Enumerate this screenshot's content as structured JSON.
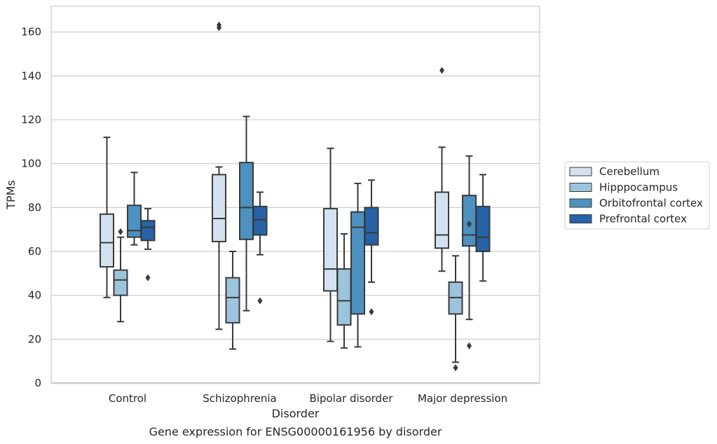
{
  "chart_data": {
    "type": "box",
    "caption": "Gene expression for ENSG00000161956 by disorder",
    "xlabel": "Disorder",
    "ylabel": "TPMs",
    "ylim": [
      0,
      172
    ],
    "yticks": [
      0,
      20,
      40,
      60,
      80,
      100,
      120,
      140,
      160
    ],
    "grid": "horizontal",
    "legend_placement": "right",
    "categories": [
      "Control",
      "Schizophrenia",
      "Bipolar disorder",
      "Major depression"
    ],
    "series": [
      {
        "name": "Cerebellum",
        "color": "#d4e2f0",
        "boxes": [
          {
            "whislo": 39,
            "q1": 53,
            "med": 64,
            "q3": 77,
            "whishi": 112,
            "fliers": []
          },
          {
            "whislo": 24.5,
            "q1": 64.5,
            "med": 75,
            "q3": 95,
            "whishi": 98.5,
            "fliers": [
              162,
              163.2
            ]
          },
          {
            "whislo": 19,
            "q1": 42,
            "med": 52,
            "q3": 79.5,
            "whishi": 107,
            "fliers": []
          },
          {
            "whislo": 51,
            "q1": 61.5,
            "med": 67.5,
            "q3": 87,
            "whishi": 107.5,
            "fliers": [
              142.5
            ]
          }
        ]
      },
      {
        "name": "Hipppocampus",
        "color": "#9cc4dc",
        "boxes": [
          {
            "whislo": 28,
            "q1": 40,
            "med": 47,
            "q3": 51.5,
            "whishi": 66.5,
            "fliers": [
              69
            ]
          },
          {
            "whislo": 15.5,
            "q1": 27.5,
            "med": 39,
            "q3": 48,
            "whishi": 60,
            "fliers": []
          },
          {
            "whislo": 16,
            "q1": 26.5,
            "med": 37.5,
            "q3": 52,
            "whishi": 68,
            "fliers": []
          },
          {
            "whislo": 9.5,
            "q1": 31.5,
            "med": 39,
            "q3": 46,
            "whishi": 58,
            "fliers": [
              7
            ]
          }
        ]
      },
      {
        "name": "Orbitofrontal cortex",
        "color": "#4c91c0",
        "boxes": [
          {
            "whislo": 63,
            "q1": 66.5,
            "med": 69.5,
            "q3": 81,
            "whishi": 96,
            "fliers": []
          },
          {
            "whislo": 33,
            "q1": 65.5,
            "med": 80,
            "q3": 100.5,
            "whishi": 121.5,
            "fliers": []
          },
          {
            "whislo": 16.5,
            "q1": 31.5,
            "med": 71,
            "q3": 78,
            "whishi": 91,
            "fliers": []
          },
          {
            "whislo": 29,
            "q1": 62.5,
            "med": 67.5,
            "q3": 85.5,
            "whishi": 103.5,
            "fliers": [
              72.5,
              17
            ]
          }
        ]
      },
      {
        "name": "Prefrontal cortex",
        "color": "#2563a6",
        "boxes": [
          {
            "whislo": 61,
            "q1": 65,
            "med": 71,
            "q3": 74,
            "whishi": 79.5,
            "fliers": [
              48
            ]
          },
          {
            "whislo": 58.5,
            "q1": 67.5,
            "med": 74.5,
            "q3": 80.5,
            "whishi": 87,
            "fliers": [
              37.5
            ]
          },
          {
            "whislo": 46,
            "q1": 63,
            "med": 68.5,
            "q3": 80,
            "whishi": 92.5,
            "fliers": [
              32.5
            ]
          },
          {
            "whislo": 46.5,
            "q1": 60,
            "med": 66.5,
            "q3": 80.5,
            "whishi": 95,
            "fliers": []
          }
        ]
      }
    ]
  }
}
